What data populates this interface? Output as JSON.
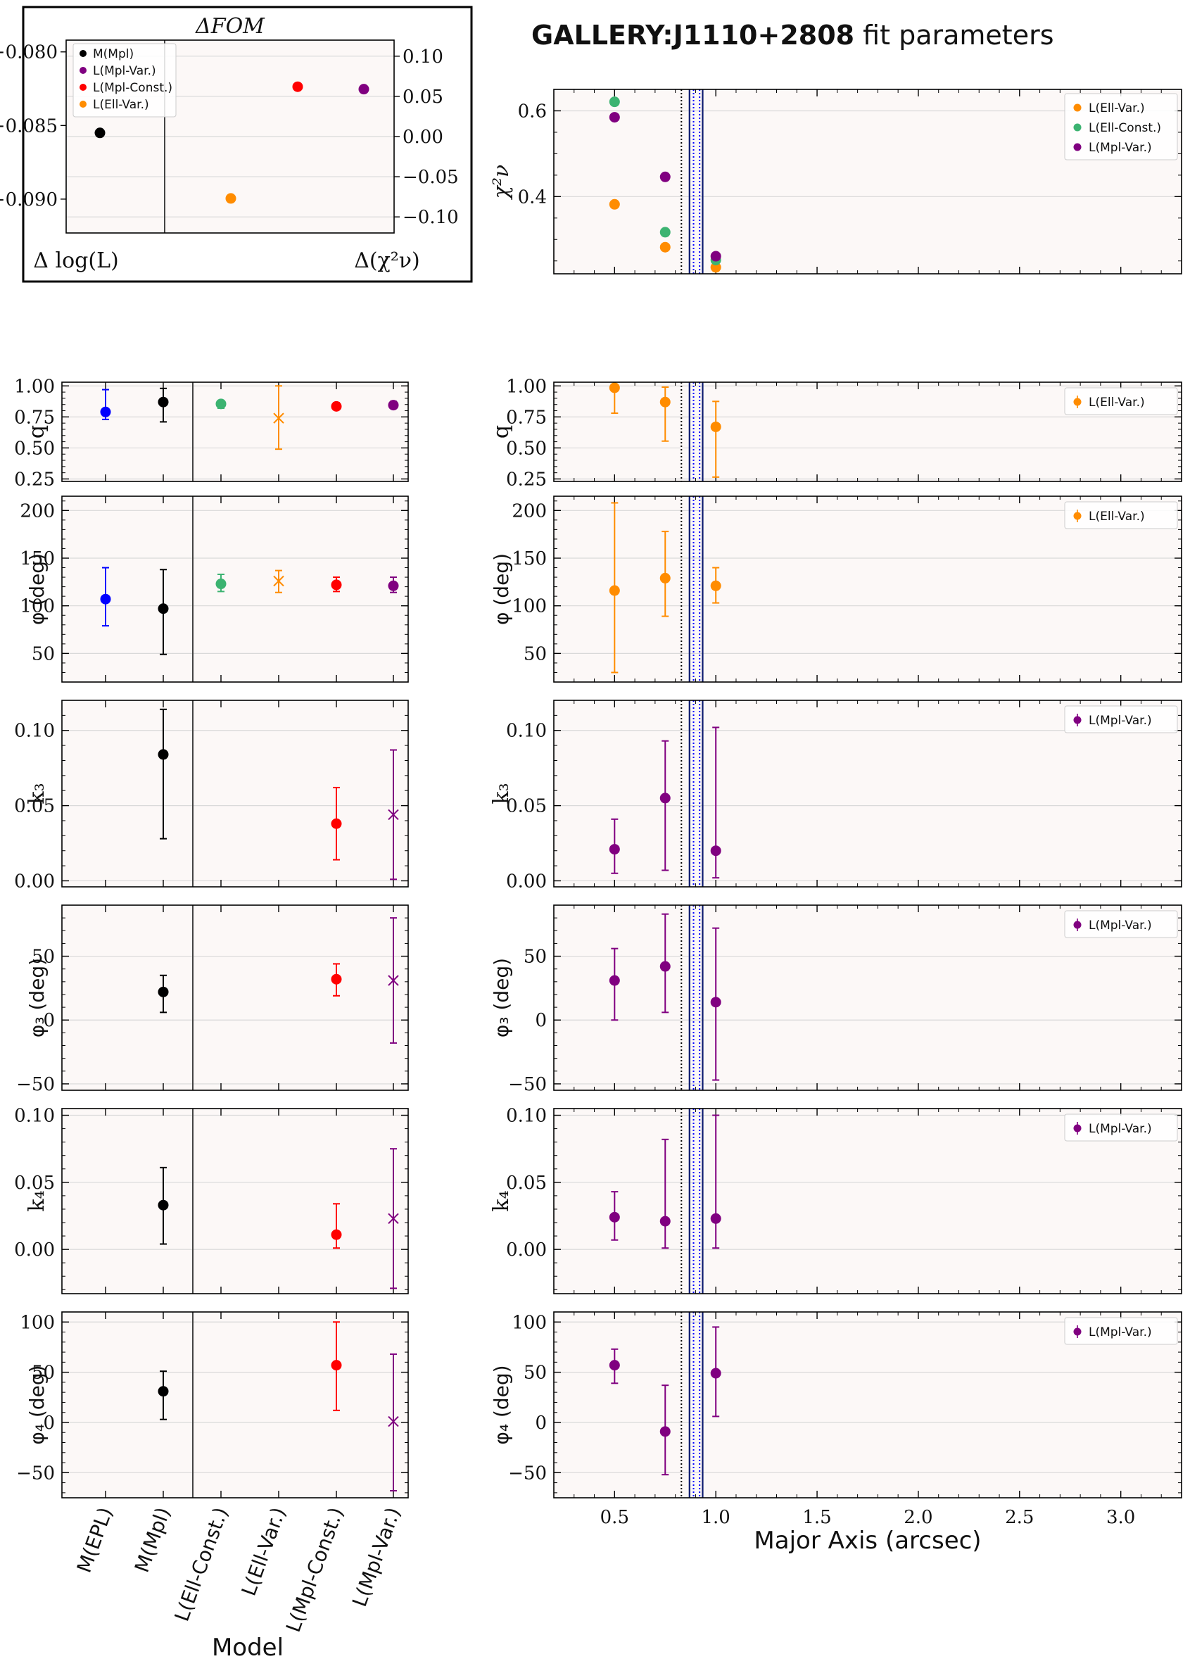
{
  "title": {
    "bold": "GALLERY:J1110+2808",
    "normal": " fit parameters"
  },
  "colors": {
    "M(EPL)": "#0000ff",
    "M(Mpl)": "#000000",
    "L(Ell-Const.)": "#3cb371",
    "L(Ell-Var.)": "#ff8c00",
    "L(Mpl-Const.)": "#ff0000",
    "L(Mpl-Var.)": "#800080",
    "panel_bg": "#fcf8f7",
    "grid": "#d9d9d9",
    "vline_black": "#000000",
    "vline_navy": "#0b1a6e",
    "vline_blue": "#0000ff"
  },
  "chart_data": [
    {
      "type": "scatter",
      "title": "ΔFOM",
      "xlabel_left": "Δ log(L)",
      "xlabel_right": "Δ(χ²ν)",
      "left_ylim": [
        -0.0923,
        -0.0792
      ],
      "left_yticks": [
        -0.08,
        -0.085,
        -0.09
      ],
      "left_ytick_labels": [
        "−0.080",
        "−0.085",
        "−0.090"
      ],
      "right_ylim": [
        -0.12,
        0.12
      ],
      "right_yticks": [
        0.1,
        0.05,
        0.0,
        -0.05,
        -0.1
      ],
      "right_ytick_labels": [
        "0.10",
        "0.05",
        "0.00",
        "−0.05",
        "−0.10"
      ],
      "legend": [
        "M(Mpl)",
        "L(Mpl-Var.)",
        "L(Mpl-Const.)",
        "L(Ell-Var.)"
      ],
      "legend_position": "upper-left",
      "points": [
        {
          "series": "M(Mpl)",
          "axis": "left",
          "y": -0.0855
        },
        {
          "series": "L(Ell-Var.)",
          "axis": "right",
          "y": -0.077
        },
        {
          "series": "L(Mpl-Const.)",
          "axis": "right",
          "y": 0.062
        },
        {
          "series": "L(Mpl-Var.)",
          "axis": "right",
          "y": 0.059
        }
      ]
    },
    {
      "type": "scatter",
      "ylabel": "χ²ν",
      "xlim": [
        0.2,
        3.3
      ],
      "ylim": [
        0.22,
        0.65
      ],
      "yticks": [
        0.6,
        0.4
      ],
      "ytick_labels": [
        "0.6",
        "0.4"
      ],
      "legend": [
        "L(Ell-Var.)",
        "L(Ell-Const.)",
        "L(Mpl-Var.)"
      ],
      "legend_position": "top-right",
      "series": [
        {
          "name": "L(Ell-Var.)",
          "x": [
            0.5,
            0.75,
            1.0
          ],
          "y": [
            0.382,
            0.282,
            0.235
          ]
        },
        {
          "name": "L(Ell-Const.)",
          "x": [
            0.5,
            0.75,
            1.0
          ],
          "y": [
            0.621,
            0.317,
            0.252
          ]
        },
        {
          "name": "L(Mpl-Var.)",
          "x": [
            0.5,
            0.75,
            1.0
          ],
          "y": [
            0.585,
            0.446,
            0.261
          ]
        }
      ]
    }
  ],
  "model_axis": {
    "xlabel": "Model",
    "labels": [
      "M(EPL)",
      "M(Mpl)",
      "L(Ell-Const.)",
      "L(Ell-Var.)",
      "L(Mpl-Const.)",
      "L(Mpl-Var.)"
    ]
  },
  "radial_axis": {
    "xlabel": "Major Axis (arcsec)",
    "xlim": [
      0.2,
      3.3
    ],
    "xticks": [
      0.5,
      1.0,
      1.5,
      2.0,
      2.5,
      3.0
    ],
    "xtick_labels": [
      "0.5",
      "1.0",
      "1.5",
      "2.0",
      "2.5",
      "3.0"
    ],
    "reference_lines": [
      {
        "x": 0.83,
        "style": "dotted",
        "color": "black"
      },
      {
        "x": 0.87,
        "style": "solid",
        "color": "navy"
      },
      {
        "x": 0.89,
        "style": "dotted",
        "color": "blue"
      },
      {
        "x": 0.92,
        "style": "dotted",
        "color": "blue"
      },
      {
        "x": 0.935,
        "style": "solid",
        "color": "navy"
      }
    ]
  },
  "param_panels": [
    {
      "ylabel": "q",
      "ylim": [
        0.23,
        1.03
      ],
      "yticks": [
        1.0,
        0.75,
        0.5,
        0.25
      ],
      "ytick_labels": [
        "1.00",
        "0.75",
        "0.50",
        "0.25"
      ],
      "models": [
        {
          "model": "M(EPL)",
          "y": 0.79,
          "lo": 0.73,
          "hi": 0.97,
          "marker": "o"
        },
        {
          "model": "M(Mpl)",
          "y": 0.87,
          "lo": 0.71,
          "hi": 0.98,
          "marker": "o"
        },
        {
          "model": "L(Ell-Const.)",
          "y": 0.855,
          "lo": 0.82,
          "hi": 0.88,
          "marker": "o"
        },
        {
          "model": "L(Ell-Var.)",
          "y": 0.74,
          "lo": 0.49,
          "hi": 1.0,
          "marker": "x"
        },
        {
          "model": "L(Mpl-Const.)",
          "y": 0.835,
          "lo": 0.81,
          "hi": 0.865,
          "marker": "o"
        },
        {
          "model": "L(Mpl-Var.)",
          "y": 0.845,
          "lo": 0.82,
          "hi": 0.875,
          "marker": "o"
        }
      ],
      "radial_series": "L(Ell-Var.)",
      "radial": [
        {
          "x": 0.5,
          "y": 0.985,
          "lo": 0.78,
          "hi": 0.99
        },
        {
          "x": 0.75,
          "y": 0.87,
          "lo": 0.555,
          "hi": 0.99
        },
        {
          "x": 1.0,
          "y": 0.67,
          "lo": 0.265,
          "hi": 0.875
        }
      ]
    },
    {
      "ylabel": "φ (deg)",
      "ylim": [
        20,
        215
      ],
      "yticks": [
        200,
        150,
        100,
        50
      ],
      "ytick_labels": [
        "200",
        "150",
        "100",
        "50"
      ],
      "models": [
        {
          "model": "M(EPL)",
          "y": 107,
          "lo": 79,
          "hi": 140,
          "marker": "o"
        },
        {
          "model": "M(Mpl)",
          "y": 97,
          "lo": 49,
          "hi": 138,
          "marker": "o"
        },
        {
          "model": "L(Ell-Const.)",
          "y": 123,
          "lo": 115,
          "hi": 133,
          "marker": "o"
        },
        {
          "model": "L(Ell-Var.)",
          "y": 126,
          "lo": 114,
          "hi": 137,
          "marker": "x"
        },
        {
          "model": "L(Mpl-Const.)",
          "y": 122,
          "lo": 115,
          "hi": 130,
          "marker": "o"
        },
        {
          "model": "L(Mpl-Var.)",
          "y": 121,
          "lo": 114,
          "hi": 130,
          "marker": "o"
        }
      ],
      "radial_series": "L(Ell-Var.)",
      "radial": [
        {
          "x": 0.5,
          "y": 116,
          "lo": 30,
          "hi": 208
        },
        {
          "x": 0.75,
          "y": 129,
          "lo": 89,
          "hi": 178
        },
        {
          "x": 1.0,
          "y": 121,
          "lo": 103,
          "hi": 140
        }
      ]
    },
    {
      "ylabel": "k₃",
      "ylim": [
        -0.004,
        0.12
      ],
      "yticks": [
        0.1,
        0.05,
        0.0
      ],
      "ytick_labels": [
        "0.10",
        "0.05",
        "0.00"
      ],
      "models": [
        {
          "model": "M(Mpl)",
          "y": 0.084,
          "lo": 0.028,
          "hi": 0.114,
          "marker": "o"
        },
        {
          "model": "L(Mpl-Const.)",
          "y": 0.038,
          "lo": 0.014,
          "hi": 0.062,
          "marker": "o"
        },
        {
          "model": "L(Mpl-Var.)",
          "y": 0.044,
          "lo": 0.001,
          "hi": 0.087,
          "marker": "x"
        }
      ],
      "radial_series": "L(Mpl-Var.)",
      "radial": [
        {
          "x": 0.5,
          "y": 0.021,
          "lo": 0.005,
          "hi": 0.041
        },
        {
          "x": 0.75,
          "y": 0.055,
          "lo": 0.007,
          "hi": 0.093
        },
        {
          "x": 1.0,
          "y": 0.02,
          "lo": 0.002,
          "hi": 0.102
        }
      ]
    },
    {
      "ylabel": "φ₃ (deg)",
      "ylim": [
        -55,
        90
      ],
      "yticks": [
        50,
        0,
        -50
      ],
      "ytick_labels": [
        "50",
        "0",
        "−50"
      ],
      "models": [
        {
          "model": "M(Mpl)",
          "y": 22,
          "lo": 6,
          "hi": 35,
          "marker": "o"
        },
        {
          "model": "L(Mpl-Const.)",
          "y": 32,
          "lo": 19,
          "hi": 44,
          "marker": "o"
        },
        {
          "model": "L(Mpl-Var.)",
          "y": 31,
          "lo": -18,
          "hi": 80,
          "marker": "x"
        }
      ],
      "radial_series": "L(Mpl-Var.)",
      "radial": [
        {
          "x": 0.5,
          "y": 31,
          "lo": 0,
          "hi": 56
        },
        {
          "x": 0.75,
          "y": 42,
          "lo": 6,
          "hi": 83
        },
        {
          "x": 1.0,
          "y": 14,
          "lo": -47,
          "hi": 72
        }
      ]
    },
    {
      "ylabel": "k₄",
      "ylim": [
        -0.033,
        0.105
      ],
      "yticks": [
        0.1,
        0.05,
        0.0
      ],
      "ytick_labels": [
        "0.10",
        "0.05",
        "0.00"
      ],
      "models": [
        {
          "model": "M(Mpl)",
          "y": 0.033,
          "lo": 0.004,
          "hi": 0.061,
          "marker": "o"
        },
        {
          "model": "L(Mpl-Const.)",
          "y": 0.011,
          "lo": 0.001,
          "hi": 0.034,
          "marker": "o"
        },
        {
          "model": "L(Mpl-Var.)",
          "y": 0.023,
          "lo": -0.029,
          "hi": 0.075,
          "marker": "x"
        }
      ],
      "radial_series": "L(Mpl-Var.)",
      "radial": [
        {
          "x": 0.5,
          "y": 0.024,
          "lo": 0.007,
          "hi": 0.043
        },
        {
          "x": 0.75,
          "y": 0.021,
          "lo": 0.001,
          "hi": 0.082
        },
        {
          "x": 1.0,
          "y": 0.023,
          "lo": 0.001,
          "hi": 0.1
        }
      ]
    },
    {
      "ylabel": "φ₄ (deg)",
      "ylim": [
        -75,
        110
      ],
      "yticks": [
        100,
        50,
        0,
        -50
      ],
      "ytick_labels": [
        "100",
        "50",
        "0",
        "−50"
      ],
      "models": [
        {
          "model": "M(Mpl)",
          "y": 31,
          "lo": 3,
          "hi": 51,
          "marker": "o"
        },
        {
          "model": "L(Mpl-Const.)",
          "y": 57,
          "lo": 12,
          "hi": 100,
          "marker": "o"
        },
        {
          "model": "L(Mpl-Var.)",
          "y": 1,
          "lo": -68,
          "hi": 68,
          "marker": "x"
        }
      ],
      "radial_series": "L(Mpl-Var.)",
      "radial": [
        {
          "x": 0.5,
          "y": 57,
          "lo": 39,
          "hi": 73
        },
        {
          "x": 0.75,
          "y": -9,
          "lo": -52,
          "hi": 37
        },
        {
          "x": 1.0,
          "y": 49,
          "lo": 6,
          "hi": 95
        }
      ]
    }
  ]
}
